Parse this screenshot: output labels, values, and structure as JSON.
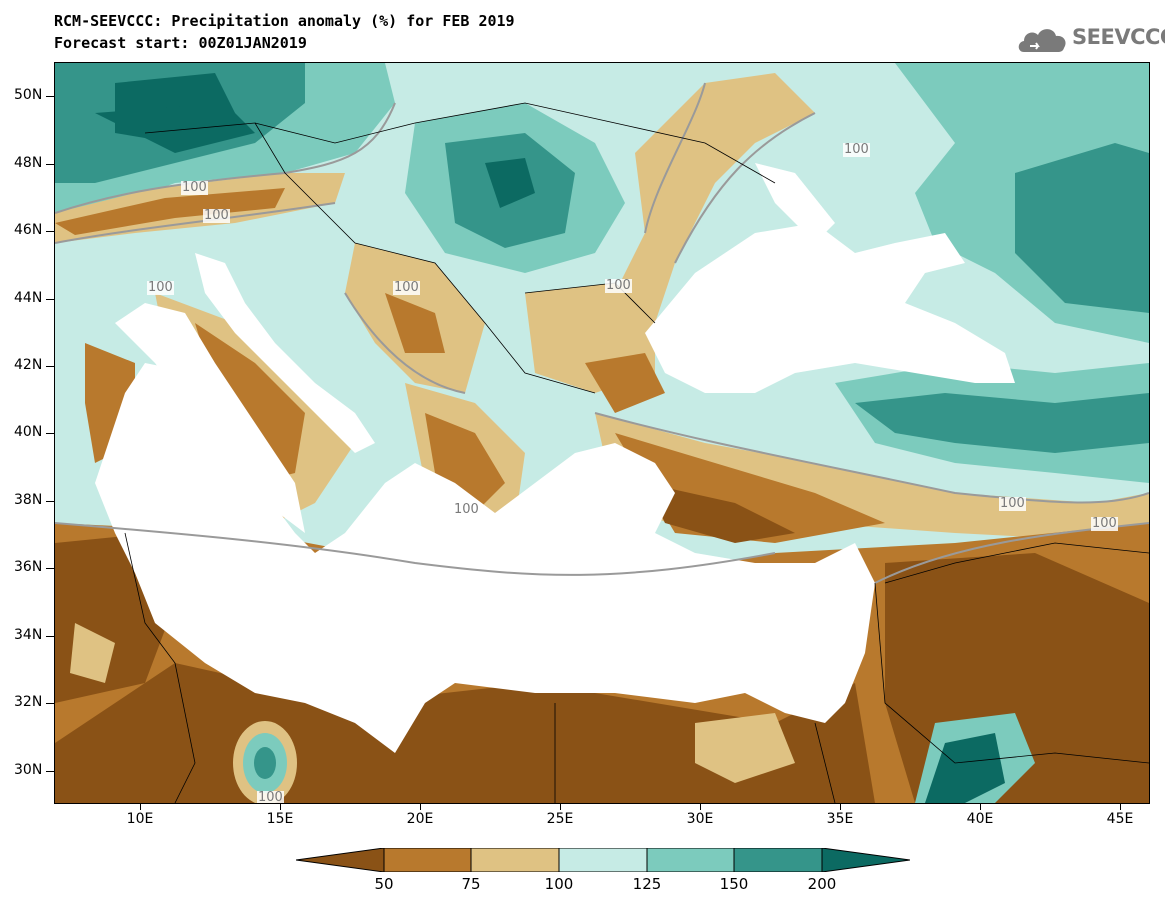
{
  "header": {
    "title": "RCM-SEEVCCC: Precipitation anomaly (%) for FEB 2019",
    "subtitle": "Forecast start: 00Z01JAN2019",
    "logo_text": "SEEVCCC"
  },
  "map": {
    "region": "Eastern Mediterranean / Balkans / Black Sea",
    "lat_labels": [
      "50N",
      "48N",
      "46N",
      "44N",
      "42N",
      "40N",
      "38N",
      "36N",
      "34N",
      "32N",
      "30N"
    ],
    "lon_labels": [
      "10E",
      "15E",
      "20E",
      "25E",
      "30E",
      "35E",
      "40E",
      "45E"
    ],
    "contour_labels": [
      "100",
      "100",
      "100",
      "100",
      "100",
      "100",
      "100",
      "100",
      "100",
      "100"
    ]
  },
  "colorbar": {
    "labels": [
      "50",
      "75",
      "100",
      "125",
      "150",
      "200"
    ],
    "colors": {
      "below_50": "#8a5216",
      "50_75": "#b8792d",
      "75_100": "#dfc283",
      "100_125": "#c6ebe5",
      "125_150": "#7ccbbd",
      "150_200": "#35958a",
      "above_200": "#0c6a62"
    },
    "land_mask_color": "#ffffff",
    "contour_color": "#9a9a9a"
  }
}
